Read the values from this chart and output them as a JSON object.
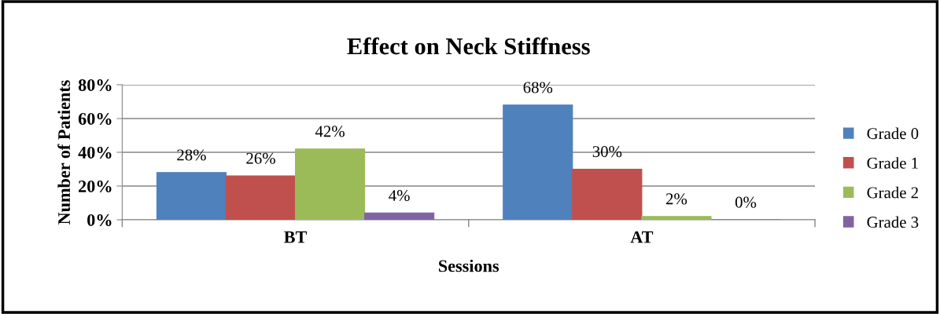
{
  "chart_data": {
    "type": "bar",
    "title": "Effect on Neck Stiffness",
    "xlabel": "Sessions",
    "ylabel": "Number of Patients",
    "categories": [
      "BT",
      "AT"
    ],
    "series": [
      {
        "name": "Grade 0",
        "color": "#4f81bd",
        "values": [
          28,
          68
        ],
        "value_labels": [
          "28%",
          "68%"
        ]
      },
      {
        "name": "Grade 1",
        "color": "#c0504d",
        "values": [
          26,
          30
        ],
        "value_labels": [
          "26%",
          "30%"
        ]
      },
      {
        "name": "Grade 2",
        "color": "#9bbb59",
        "values": [
          42,
          2
        ],
        "value_labels": [
          "42%",
          "2%"
        ]
      },
      {
        "name": "Grade 3",
        "color": "#8064a2",
        "values": [
          4,
          0
        ],
        "value_labels": [
          "4%",
          "0%"
        ]
      }
    ],
    "ylim": [
      0,
      80
    ],
    "yticks": [
      {
        "value": 0,
        "label": "0%"
      },
      {
        "value": 20,
        "label": "20%"
      },
      {
        "value": 40,
        "label": "40%"
      },
      {
        "value": 60,
        "label": "60%"
      },
      {
        "value": 80,
        "label": "80%"
      }
    ],
    "grid": "y",
    "legend": "right"
  }
}
